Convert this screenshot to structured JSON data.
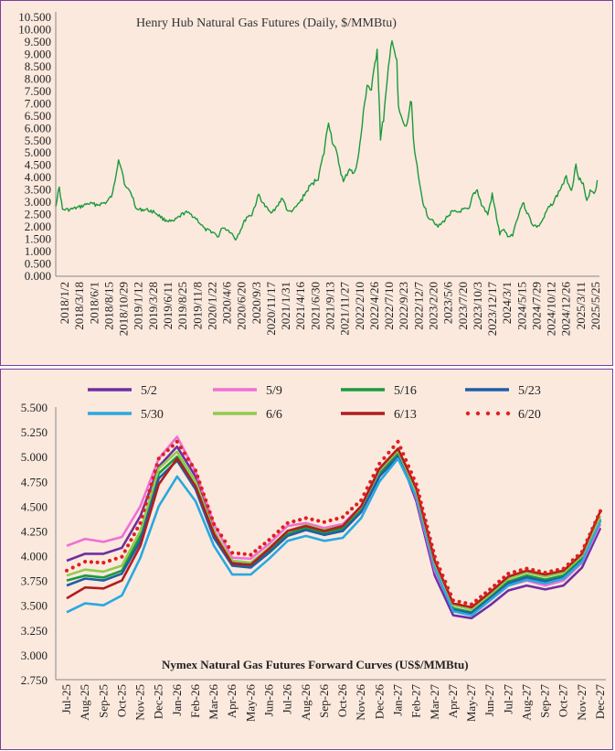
{
  "chart_data": [
    {
      "type": "line",
      "title": "Henry Hub Natural Gas Futures (Daily, $/MMBtu)",
      "ylim": [
        0,
        10.5
      ],
      "y_ticks": [
        "0.000",
        "0.500",
        "1.000",
        "1.500",
        "2.000",
        "2.500",
        "3.000",
        "3.500",
        "4.000",
        "4.500",
        "5.000",
        "5.500",
        "6.000",
        "6.500",
        "7.000",
        "7.500",
        "8.000",
        "8.500",
        "9.000",
        "9.500",
        "10.000",
        "10.500"
      ],
      "x_tick_labels": [
        "2018/1/2",
        "2018/3/18",
        "2018/6/1",
        "2018/8/15",
        "2018/10/29",
        "2019/1/12",
        "2019/3/28",
        "2019/6/11",
        "2019/8/25",
        "2019/11/8",
        "2020/1/22",
        "2020/4/6",
        "2020/6/20",
        "2020/9/3",
        "2020/11/17",
        "2021/1/31",
        "2021/4/16",
        "2021/6/30",
        "2021/9/13",
        "2021/11/27",
        "2022/2/10",
        "2022/4/26",
        "2022/7/10",
        "2022/9/23",
        "2022/12/7",
        "2023/2/20",
        "2023/5/6",
        "2023/7/20",
        "2023/10/3",
        "2023/12/17",
        "2024/3/1",
        "2024/5/15",
        "2024/7/29",
        "2024/10/12",
        "2024/12/26",
        "2025/3/11",
        "2025/5/25"
      ],
      "grid": false,
      "series": [
        {
          "color": "#1a9a3a",
          "points": [
            [
              "2018-01-02",
              2.9
            ],
            [
              "2018-01-20",
              3.6
            ],
            [
              "2018-02-05",
              2.7
            ],
            [
              "2018-03-15",
              2.7
            ],
            [
              "2018-05-01",
              2.8
            ],
            [
              "2018-06-15",
              2.95
            ],
            [
              "2018-08-01",
              2.9
            ],
            [
              "2018-09-15",
              3.0
            ],
            [
              "2018-10-15",
              3.3
            ],
            [
              "2018-11-14",
              4.8
            ],
            [
              "2018-12-01",
              4.3
            ],
            [
              "2018-12-20",
              3.6
            ],
            [
              "2019-01-15",
              3.4
            ],
            [
              "2019-02-15",
              2.7
            ],
            [
              "2019-04-01",
              2.7
            ],
            [
              "2019-05-15",
              2.6
            ],
            [
              "2019-07-01",
              2.3
            ],
            [
              "2019-08-15",
              2.2
            ],
            [
              "2019-10-15",
              2.6
            ],
            [
              "2019-11-15",
              2.5
            ],
            [
              "2019-12-15",
              2.3
            ],
            [
              "2020-01-22",
              1.9
            ],
            [
              "2020-03-01",
              1.8
            ],
            [
              "2020-04-01",
              1.6
            ],
            [
              "2020-04-20",
              2.0
            ],
            [
              "2020-06-01",
              1.8
            ],
            [
              "2020-06-25",
              1.5
            ],
            [
              "2020-07-15",
              1.8
            ],
            [
              "2020-08-20",
              2.4
            ],
            [
              "2020-09-15",
              2.5
            ],
            [
              "2020-10-20",
              3.3
            ],
            [
              "2020-11-15",
              2.9
            ],
            [
              "2020-12-15",
              2.6
            ],
            [
              "2021-01-20",
              2.8
            ],
            [
              "2021-02-17",
              3.2
            ],
            [
              "2021-03-15",
              2.6
            ],
            [
              "2021-04-16",
              2.7
            ],
            [
              "2021-05-15",
              3.0
            ],
            [
              "2021-06-30",
              3.6
            ],
            [
              "2021-08-15",
              4.0
            ],
            [
              "2021-09-13",
              5.0
            ],
            [
              "2021-10-06",
              6.3
            ],
            [
              "2021-10-25",
              5.5
            ],
            [
              "2021-11-15",
              5.0
            ],
            [
              "2021-12-20",
              3.8
            ],
            [
              "2022-01-20",
              4.4
            ],
            [
              "2022-02-10",
              4.1
            ],
            [
              "2022-03-07",
              4.9
            ],
            [
              "2022-04-18",
              7.8
            ],
            [
              "2022-05-10",
              7.5
            ],
            [
              "2022-06-08",
              9.3
            ],
            [
              "2022-06-25",
              5.6
            ],
            [
              "2022-07-10",
              6.4
            ],
            [
              "2022-08-22",
              9.7
            ],
            [
              "2022-09-15",
              8.6
            ],
            [
              "2022-09-23",
              6.8
            ],
            [
              "2022-10-12",
              6.3
            ],
            [
              "2022-11-01",
              6.0
            ],
            [
              "2022-11-28",
              7.2
            ],
            [
              "2022-12-07",
              5.6
            ],
            [
              "2023-01-01",
              4.0
            ],
            [
              "2023-01-25",
              3.0
            ],
            [
              "2023-02-20",
              2.4
            ],
            [
              "2023-03-15",
              2.3
            ],
            [
              "2023-04-10",
              2.0
            ],
            [
              "2023-05-06",
              2.2
            ],
            [
              "2023-06-15",
              2.6
            ],
            [
              "2023-07-20",
              2.6
            ],
            [
              "2023-08-15",
              2.7
            ],
            [
              "2023-09-15",
              2.7
            ],
            [
              "2023-10-03",
              3.3
            ],
            [
              "2023-10-25",
              3.5
            ],
            [
              "2023-11-15",
              2.9
            ],
            [
              "2023-12-17",
              2.5
            ],
            [
              "2024-01-08",
              3.3
            ],
            [
              "2024-01-25",
              2.6
            ],
            [
              "2024-02-15",
              1.7
            ],
            [
              "2024-03-01",
              1.9
            ],
            [
              "2024-04-01",
              1.6
            ],
            [
              "2024-04-20",
              1.7
            ],
            [
              "2024-05-15",
              2.4
            ],
            [
              "2024-06-10",
              3.0
            ],
            [
              "2024-07-01",
              2.6
            ],
            [
              "2024-07-29",
              2.1
            ],
            [
              "2024-08-25",
              2.0
            ],
            [
              "2024-09-20",
              2.3
            ],
            [
              "2024-10-12",
              2.7
            ],
            [
              "2024-11-10",
              3.0
            ],
            [
              "2024-12-01",
              3.3
            ],
            [
              "2024-12-26",
              3.7
            ],
            [
              "2025-01-15",
              4.0
            ],
            [
              "2025-02-10",
              3.5
            ],
            [
              "2025-03-05",
              4.5
            ],
            [
              "2025-03-20",
              4.0
            ],
            [
              "2025-04-10",
              3.7
            ],
            [
              "2025-04-28",
              3.0
            ],
            [
              "2025-05-15",
              3.5
            ],
            [
              "2025-06-10",
              3.4
            ],
            [
              "2025-06-20",
              3.9
            ]
          ]
        }
      ]
    },
    {
      "type": "line",
      "title": "Nymex  Natural  Gas Futures Forward  Curves (US$/MMBtu)",
      "ylim": [
        2.75,
        5.5
      ],
      "y_ticks": [
        "2.750",
        "3.000",
        "3.250",
        "3.500",
        "3.750",
        "4.000",
        "4.250",
        "4.500",
        "4.750",
        "5.000",
        "5.250",
        "5.500"
      ],
      "categories": [
        "Jul-25",
        "Aug-25",
        "Sep-25",
        "Oct-25",
        "Nov-25",
        "Dec-25",
        "Jan-26",
        "Feb-26",
        "Mar-26",
        "Apr-26",
        "May-26",
        "Jun-26",
        "Jul-26",
        "Aug-26",
        "Sep-26",
        "Oct-26",
        "Nov-26",
        "Dec-26",
        "Jan-27",
        "Feb-27",
        "Mar-27",
        "Apr-27",
        "May-27",
        "Jun-27",
        "Jul-27",
        "Aug-27",
        "Sep-27",
        "Oct-27",
        "Nov-27",
        "Dec-27"
      ],
      "legend_position": "top",
      "grid": false,
      "series": [
        {
          "name": "5/2",
          "color": "#6f2fa0",
          "dotted": false,
          "values": [
            3.95,
            4.02,
            4.02,
            4.08,
            4.4,
            4.9,
            5.1,
            4.8,
            4.25,
            3.93,
            3.92,
            4.08,
            4.25,
            4.3,
            4.25,
            4.28,
            4.48,
            4.85,
            5.05,
            4.55,
            3.8,
            3.4,
            3.37,
            3.5,
            3.65,
            3.7,
            3.66,
            3.7,
            3.88,
            4.28
          ]
        },
        {
          "name": "5/9",
          "color": "#f06fd6",
          "dotted": false,
          "values": [
            4.1,
            4.17,
            4.14,
            4.19,
            4.5,
            4.98,
            5.2,
            4.85,
            4.32,
            3.98,
            3.97,
            4.12,
            4.3,
            4.33,
            4.28,
            4.32,
            4.5,
            4.88,
            5.08,
            4.58,
            3.85,
            3.45,
            3.42,
            3.55,
            3.7,
            3.75,
            3.7,
            3.75,
            3.93,
            4.32
          ]
        },
        {
          "name": "5/16",
          "color": "#1a9a3a",
          "dotted": false,
          "values": [
            3.75,
            3.8,
            3.78,
            3.85,
            4.2,
            4.83,
            5.0,
            4.7,
            4.2,
            3.92,
            3.9,
            4.05,
            4.22,
            4.28,
            4.23,
            4.27,
            4.46,
            4.82,
            5.02,
            4.62,
            3.9,
            3.47,
            3.43,
            3.58,
            3.74,
            3.8,
            3.76,
            3.8,
            3.97,
            4.37
          ]
        },
        {
          "name": "5/23",
          "color": "#1f5ea8",
          "dotted": false,
          "values": [
            3.7,
            3.77,
            3.75,
            3.82,
            4.15,
            4.78,
            4.96,
            4.67,
            4.18,
            3.9,
            3.88,
            4.03,
            4.2,
            4.26,
            4.21,
            4.25,
            4.44,
            4.8,
            5.0,
            4.6,
            3.88,
            3.45,
            3.42,
            3.57,
            3.72,
            3.78,
            3.74,
            3.78,
            3.95,
            4.35
          ]
        },
        {
          "name": "5/30",
          "color": "#29a8e0",
          "dotted": false,
          "values": [
            3.43,
            3.52,
            3.5,
            3.6,
            3.98,
            4.5,
            4.8,
            4.55,
            4.1,
            3.81,
            3.81,
            3.97,
            4.15,
            4.2,
            4.15,
            4.18,
            4.38,
            4.75,
            4.98,
            4.6,
            3.88,
            3.44,
            3.4,
            3.55,
            3.7,
            3.76,
            3.72,
            3.77,
            3.94,
            4.35
          ]
        },
        {
          "name": "6/6",
          "color": "#8fcb4f",
          "dotted": false,
          "values": [
            3.8,
            3.86,
            3.84,
            3.9,
            4.25,
            4.88,
            5.05,
            4.75,
            4.24,
            3.95,
            3.93,
            4.08,
            4.25,
            4.31,
            4.26,
            4.3,
            4.49,
            4.86,
            5.06,
            4.65,
            3.93,
            3.5,
            3.46,
            3.61,
            3.77,
            3.83,
            3.79,
            3.83,
            4.0,
            4.4
          ]
        },
        {
          "name": "6/13",
          "color": "#b01e1e",
          "dotted": false,
          "values": [
            3.57,
            3.68,
            3.67,
            3.75,
            4.1,
            4.72,
            4.98,
            4.7,
            4.22,
            3.92,
            3.91,
            4.07,
            4.25,
            4.3,
            4.25,
            4.3,
            4.5,
            4.88,
            5.08,
            4.68,
            3.95,
            3.52,
            3.48,
            3.63,
            3.79,
            3.85,
            3.81,
            3.85,
            4.02,
            4.45
          ]
        },
        {
          "name": "6/20",
          "color": "#e02020",
          "dotted": true,
          "values": [
            3.85,
            3.94,
            3.93,
            3.99,
            4.33,
            4.98,
            5.15,
            4.86,
            4.32,
            4.03,
            4.01,
            4.16,
            4.33,
            4.38,
            4.34,
            4.39,
            4.56,
            4.93,
            5.15,
            4.72,
            3.99,
            3.55,
            3.51,
            3.66,
            3.82,
            3.87,
            3.83,
            3.87,
            4.04,
            4.45
          ]
        }
      ]
    }
  ]
}
